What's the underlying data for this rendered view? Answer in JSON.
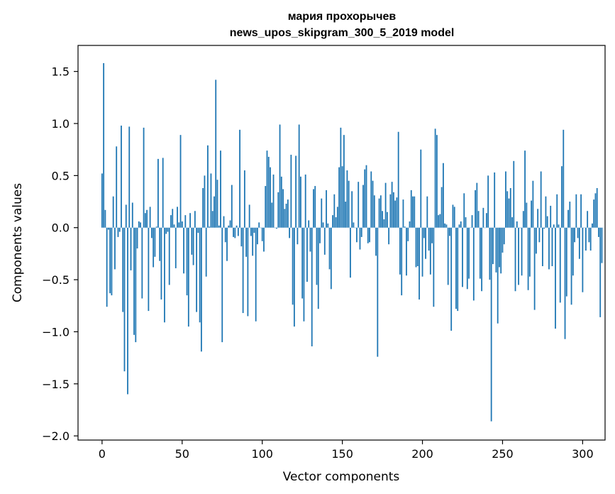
{
  "chart_data": {
    "type": "bar",
    "title": "мария прохорычев",
    "subtitle": "news_upos_skipgram_300_5_2019 model",
    "xlabel": "Vector components",
    "ylabel": "Components values",
    "xlim": [
      -15,
      314
    ],
    "ylim": [
      -2.04,
      1.75
    ],
    "xticks": [
      0,
      50,
      100,
      150,
      200,
      250,
      300
    ],
    "xtick_labels": [
      "0",
      "50",
      "100",
      "150",
      "200",
      "250",
      "300"
    ],
    "yticks": [
      1.5,
      1.0,
      0.5,
      0.0,
      -0.5,
      -1.0,
      -1.5,
      -2.0
    ],
    "ytick_labels": [
      "1.5",
      "1.0",
      "0.5",
      "0.0",
      "−0.5",
      "−1.0",
      "−1.5",
      "−2.0"
    ],
    "grid": false,
    "series": [
      {
        "name": "components",
        "color": "#1f77b4",
        "values": [
          0.52,
          1.58,
          0.17,
          -0.76,
          -0.02,
          -0.63,
          -0.65,
          0.3,
          -0.4,
          0.78,
          -0.09,
          -0.04,
          0.98,
          -0.81,
          -1.38,
          0.22,
          -1.6,
          0.97,
          -0.41,
          0.24,
          -1.03,
          -1.1,
          -0.2,
          0.06,
          0.05,
          -0.68,
          0.96,
          0.14,
          0.17,
          -0.8,
          0.2,
          -0.1,
          -0.38,
          -0.28,
          0.01,
          0.66,
          -0.32,
          -0.69,
          0.67,
          -0.91,
          -0.06,
          -0.04,
          -0.55,
          0.12,
          0.18,
          0.03,
          -0.39,
          0.2,
          0.05,
          0.89,
          0.06,
          -0.44,
          0.12,
          -0.65,
          -0.95,
          0.14,
          -0.26,
          -0.36,
          0.16,
          -0.81,
          -0.05,
          -0.91,
          -1.19,
          0.38,
          0.5,
          -0.47,
          0.79,
          0.01,
          0.52,
          0.16,
          0.3,
          1.42,
          0.46,
          0.02,
          0.74,
          -1.1,
          0.11,
          -0.14,
          -0.32,
          0.02,
          0.07,
          0.41,
          -0.09,
          -0.1,
          0.02,
          -0.08,
          0.94,
          -0.18,
          -0.82,
          0.55,
          -0.28,
          -0.85,
          0.22,
          -0.08,
          -0.27,
          -0.05,
          -0.9,
          -0.16,
          0.05,
          0.0,
          -0.13,
          -0.23,
          0.4,
          0.74,
          0.68,
          0.58,
          0.24,
          0.51,
          0.0,
          -0.01,
          0.34,
          0.99,
          0.49,
          0.37,
          0.18,
          0.23,
          0.27,
          -0.1,
          0.7,
          -0.74,
          -0.95,
          0.69,
          -0.16,
          0.99,
          0.49,
          -0.68,
          -0.9,
          0.51,
          -0.52,
          0.07,
          -0.23,
          -1.14,
          0.37,
          0.4,
          -0.55,
          -0.78,
          -0.15,
          0.28,
          0.05,
          -0.26,
          0.36,
          0.04,
          -0.4,
          -0.59,
          0.12,
          0.32,
          0.1,
          0.2,
          0.58,
          0.96,
          0.59,
          0.89,
          0.25,
          0.55,
          0.45,
          -0.48,
          0.35,
          0.05,
          0.0,
          -0.14,
          0.44,
          -0.21,
          -0.09,
          0.41,
          0.56,
          0.6,
          -0.15,
          -0.14,
          0.54,
          0.45,
          0.31,
          -0.27,
          -1.24,
          0.28,
          0.31,
          0.16,
          0.08,
          0.43,
          0.15,
          -0.16,
          0.32,
          0.44,
          0.34,
          0.26,
          0.29,
          0.92,
          -0.45,
          -0.65,
          0.27,
          0.01,
          -0.46,
          -0.13,
          0.06,
          0.36,
          0.3,
          0.3,
          -0.38,
          -0.37,
          -0.69,
          0.75,
          -0.47,
          -0.1,
          -0.3,
          0.3,
          -0.22,
          -0.45,
          -0.15,
          -0.76,
          0.95,
          0.89,
          0.12,
          0.13,
          0.39,
          0.62,
          0.04,
          0.03,
          -0.55,
          -0.08,
          -0.99,
          0.22,
          0.2,
          -0.78,
          -0.8,
          0.03,
          0.06,
          -0.57,
          0.33,
          0.1,
          -0.59,
          -0.49,
          0.0,
          0.12,
          -0.7,
          0.36,
          0.43,
          0.16,
          -0.49,
          -0.61,
          0.19,
          0.0,
          0.14,
          0.5,
          -0.5,
          -1.86,
          -0.35,
          0.53,
          -0.43,
          -0.92,
          -0.38,
          -0.44,
          -0.24,
          -0.16,
          0.54,
          0.35,
          0.28,
          0.38,
          0.1,
          0.64,
          -0.61,
          0.06,
          -0.55,
          0.0,
          -0.46,
          0.16,
          0.74,
          0.24,
          -0.6,
          -0.47,
          0.26,
          0.45,
          -0.79,
          -0.25,
          0.18,
          -0.14,
          0.54,
          -0.37,
          -0.01,
          0.3,
          0.11,
          -0.4,
          0.21,
          -0.37,
          0.03,
          -0.97,
          0.32,
          0.03,
          -0.72,
          0.59,
          0.94,
          -1.07,
          -0.66,
          0.17,
          0.25,
          -0.74,
          -0.46,
          -0.14,
          0.32,
          -0.1,
          -0.3,
          0.32,
          -0.62,
          0.0,
          -0.22,
          0.16,
          -0.14,
          -0.22,
          0.04,
          0.27,
          0.33,
          0.38,
          -0.09,
          -0.86,
          -0.34
        ]
      }
    ]
  }
}
